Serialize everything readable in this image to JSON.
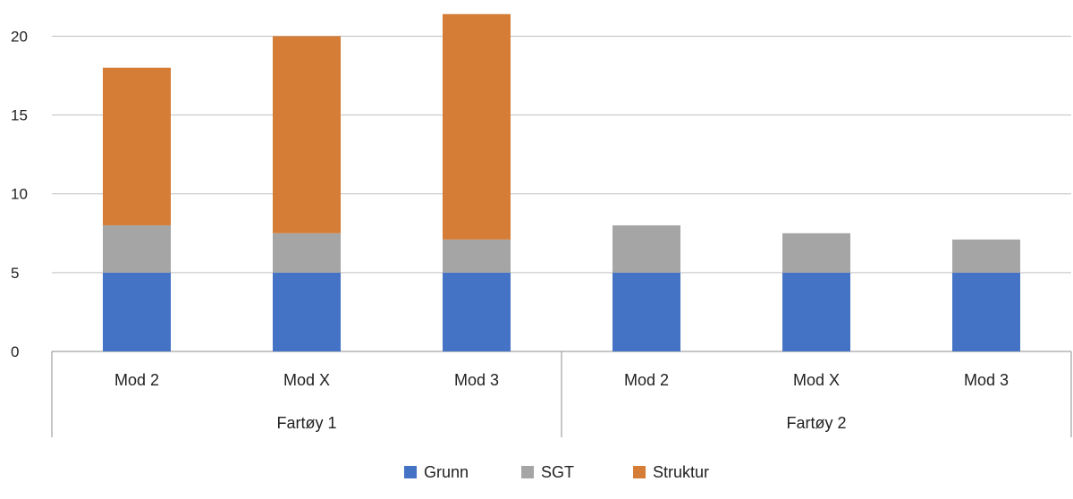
{
  "chart_data": {
    "type": "stacked-bar",
    "title": "",
    "xlabel": "",
    "ylabel": "",
    "ylim": [
      0,
      21.5
    ],
    "yticks": [
      0,
      5,
      10,
      15,
      20
    ],
    "groups": [
      {
        "label": "Fartøy 1",
        "categories": [
          "Mod 2",
          "Mod X",
          "Mod 3"
        ]
      },
      {
        "label": "Fartøy 2",
        "categories": [
          "Mod 2",
          "Mod X",
          "Mod 3"
        ]
      }
    ],
    "series": [
      {
        "name": "Grunn",
        "color": "#4472c4",
        "values": [
          5,
          5,
          5,
          5,
          5,
          5
        ]
      },
      {
        "name": "SGT",
        "color": "#a5a5a5",
        "values": [
          3,
          2.5,
          2.1,
          3,
          2.5,
          2.1
        ]
      },
      {
        "name": "Struktur",
        "color": "#d57d36",
        "values": [
          10,
          12.5,
          14.3,
          0,
          0,
          0
        ]
      }
    ],
    "legend_position": "bottom-center",
    "grid": true
  }
}
